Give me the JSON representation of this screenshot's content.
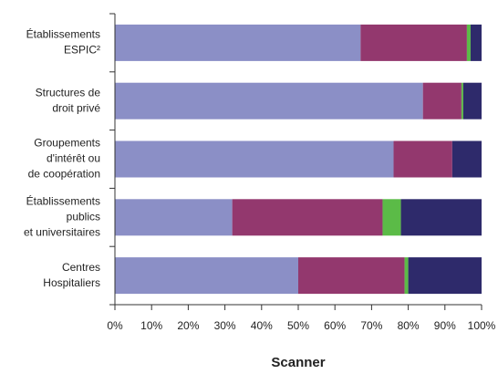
{
  "chart_data": {
    "type": "stacked_bar_horizontal",
    "xlabel": "Scanner",
    "categories": [
      [
        "Établissements",
        "ESPIC²"
      ],
      [
        "Structures de",
        "droit privé"
      ],
      [
        "Groupements",
        "d'intérêt ou",
        "de coopération"
      ],
      [
        "Établissements",
        "publics",
        "et universitaires"
      ],
      [
        "Centres",
        "Hospitaliers"
      ]
    ],
    "series": [
      {
        "color": "#8b8fc6",
        "values": [
          67,
          84,
          76,
          32,
          50
        ]
      },
      {
        "color": "#93386e",
        "values": [
          29,
          10.5,
          16,
          41,
          29
        ]
      },
      {
        "color": "#5bbb47",
        "values": [
          1,
          0.5,
          0,
          5,
          1
        ]
      },
      {
        "color": "#2e2a6b",
        "values": [
          3,
          5,
          8,
          22,
          20
        ]
      }
    ],
    "xlim": [
      0,
      100
    ],
    "xticks": [
      {
        "value": 0,
        "label": "0%"
      },
      {
        "value": 10,
        "label": "10%"
      },
      {
        "value": 20,
        "label": "20%"
      },
      {
        "value": 30,
        "label": "30%"
      },
      {
        "value": 40,
        "label": "40%"
      },
      {
        "value": 50,
        "label": "50%"
      },
      {
        "value": 60,
        "label": "60%"
      },
      {
        "value": 70,
        "label": "70%"
      },
      {
        "value": 80,
        "label": "80%"
      },
      {
        "value": 90,
        "label": "90%"
      },
      {
        "value": 100,
        "label": "100%"
      }
    ]
  }
}
